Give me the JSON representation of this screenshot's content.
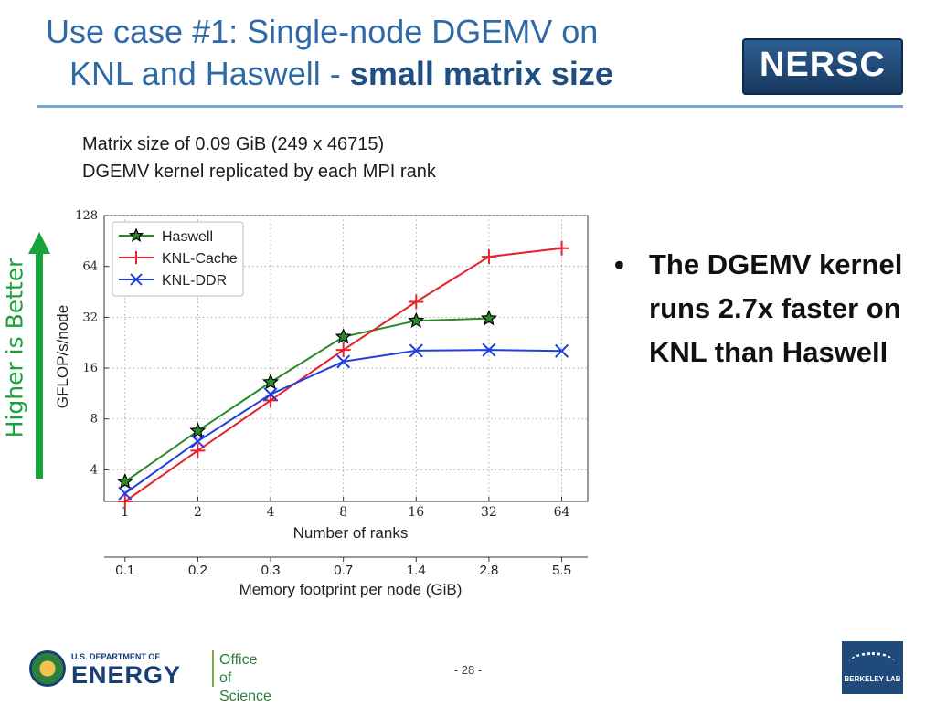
{
  "slide": {
    "title_line1": "Use case #1: Single-node DGEMV on",
    "title_line2_plain": "KNL and Haswell - ",
    "title_line2_bold": "small matrix size",
    "logo_text": "NERSC",
    "subtitle_line1": "Matrix size of 0.09 GiB (249 x 46715)",
    "subtitle_line2": "DGEMV kernel replicated by each MPI rank",
    "side_label": "Higher is Better",
    "bullet": "The DGEMV kernel runs 2.7x faster on KNL than Haswell",
    "bullet_glyph": "•",
    "footer_left_small": "U.S. DEPARTMENT OF",
    "footer_left_big": "ENERGY",
    "footer_office_1": "Office of",
    "footer_office_2": "Science",
    "page_number": "- 28 -",
    "footer_right": "BERKELEY LAB"
  },
  "colors": {
    "title": "#2f6aa8",
    "arrow": "#16a33a",
    "haswell": "#2a8a2a",
    "knl_cache": "#e8202a",
    "knl_ddr": "#1f3fe0"
  },
  "chart_data": {
    "type": "line",
    "xscale": "log2",
    "yscale": "log2",
    "x": [
      1,
      2,
      4,
      8,
      16,
      32,
      64
    ],
    "xticks": [
      "1",
      "2",
      "4",
      "8",
      "16",
      "32",
      "64"
    ],
    "yticks": [
      "4",
      "8",
      "16",
      "32",
      "64",
      "128"
    ],
    "xlabel": "Number of ranks",
    "ylabel": "GFLOP/s/node",
    "secondary_xlabel": "Memory footprint per node (GiB)",
    "secondary_xticks": [
      "0.1",
      "0.2",
      "0.3",
      "0.7",
      "1.4",
      "2.8",
      "5.5"
    ],
    "xlim": [
      0.82,
      82
    ],
    "ylim": [
      2.6,
      128
    ],
    "grid": true,
    "legend_position": "top-left",
    "series": [
      {
        "name": "Haswell",
        "marker": "star",
        "x": [
          1,
          2,
          4,
          8,
          16,
          32
        ],
        "values": [
          3.4,
          6.8,
          13.2,
          24.5,
          30.5,
          31.5
        ]
      },
      {
        "name": "KNL-Cache",
        "marker": "plus",
        "x": [
          1,
          2,
          4,
          8,
          16,
          32,
          64
        ],
        "values": [
          2.6,
          5.2,
          10.3,
          20.5,
          39.5,
          73,
          82
        ]
      },
      {
        "name": "KNL-DDR",
        "marker": "x",
        "x": [
          1,
          2,
          4,
          8,
          16,
          32,
          64
        ],
        "values": [
          2.9,
          5.9,
          11.2,
          17.5,
          20.3,
          20.5,
          20.2
        ]
      }
    ]
  }
}
